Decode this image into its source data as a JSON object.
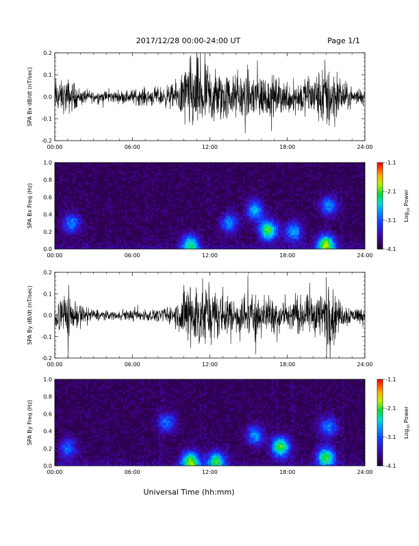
{
  "header": {
    "title": "2017/12/28  00:00-24:00 UT",
    "page_label": "Page 1/1"
  },
  "colorbar": {
    "label_main": "Log",
    "label_sub": "10",
    "label_end": " Power",
    "ticks": [
      "-1.1",
      "-2.1",
      "-3.1",
      "-4.1"
    ]
  },
  "chart_data": [
    {
      "type": "line",
      "title": "",
      "ylabel": "SPA Bx dB/dt (nT/sec)",
      "xlabel": "",
      "xlim": [
        0,
        24
      ],
      "ylim": [
        -0.2,
        0.2
      ],
      "yticks": [
        "0.2",
        "0.1",
        "0.0",
        "-0.1",
        "-0.2"
      ],
      "xticks": [
        "00:00",
        "06:00",
        "12:00",
        "18:00",
        "24:00"
      ],
      "grid": false,
      "series": [
        {
          "amplitude_envelope": {
            "x": [
              0,
              0.5,
              1,
              1.3,
              2,
              3,
              4,
              5,
              6,
              7,
              8,
              9,
              9.5,
              10,
              10.5,
              11,
              11.5,
              12,
              13,
              14,
              15,
              15.5,
              16,
              17,
              18,
              19,
              20,
              20.5,
              21,
              21.3,
              22,
              23,
              24
            ],
            "y": [
              0.13,
              0.1,
              0.12,
              0.1,
              0.05,
              0.04,
              0.04,
              0.04,
              0.05,
              0.06,
              0.06,
              0.08,
              0.1,
              0.2,
              0.24,
              0.24,
              0.24,
              0.2,
              0.17,
              0.14,
              0.17,
              0.22,
              0.15,
              0.13,
              0.11,
              0.12,
              0.14,
              0.18,
              0.24,
              0.24,
              0.12,
              0.06,
              0.05
            ]
          }
        }
      ]
    },
    {
      "type": "heatmap",
      "title": "",
      "ylabel": "SPA Bx Freq (Hz)",
      "xlabel": "",
      "xlim": [
        0,
        24
      ],
      "ylim": [
        0,
        1.0
      ],
      "yticks": [
        "1.0",
        "0.8",
        "0.6",
        "0.4",
        "0.2",
        "0.0"
      ],
      "xticks": [
        "00:00",
        "06:00",
        "12:00",
        "18:00",
        "24:00"
      ],
      "zlim": [
        -4.1,
        -1.1
      ],
      "hotspots": [
        {
          "t": 1.3,
          "f": 0.3,
          "p": -2.9
        },
        {
          "t": 10.5,
          "f": 0.05,
          "p": -2.4
        },
        {
          "t": 13.5,
          "f": 0.3,
          "p": -2.9
        },
        {
          "t": 15.5,
          "f": 0.45,
          "p": -2.7
        },
        {
          "t": 16.5,
          "f": 0.22,
          "p": -2.1
        },
        {
          "t": 18.5,
          "f": 0.2,
          "p": -2.8
        },
        {
          "t": 21.0,
          "f": 0.05,
          "p": -1.9
        },
        {
          "t": 21.2,
          "f": 0.5,
          "p": -2.9
        }
      ]
    },
    {
      "type": "line",
      "title": "",
      "ylabel": "SPA By dB/dt (nT/sec)",
      "xlabel": "",
      "xlim": [
        0,
        24
      ],
      "ylim": [
        -0.2,
        0.2
      ],
      "yticks": [
        "0.2",
        "0.1",
        "0.0",
        "-0.1",
        "-0.2"
      ],
      "xticks": [
        "00:00",
        "06:00",
        "12:00",
        "18:00",
        "24:00"
      ],
      "grid": false,
      "series": [
        {
          "amplitude_envelope": {
            "x": [
              0,
              0.5,
              1,
              1.3,
              2,
              3,
              4,
              5,
              6,
              7,
              8,
              9,
              9.5,
              10,
              10.5,
              11,
              11.5,
              12,
              13,
              14,
              15,
              15.5,
              16,
              17,
              18,
              19,
              20,
              20.5,
              21,
              21.3,
              22,
              23,
              24
            ],
            "y": [
              0.1,
              0.12,
              0.17,
              0.12,
              0.07,
              0.04,
              0.03,
              0.03,
              0.04,
              0.04,
              0.04,
              0.06,
              0.09,
              0.2,
              0.24,
              0.24,
              0.22,
              0.18,
              0.15,
              0.12,
              0.15,
              0.16,
              0.12,
              0.12,
              0.11,
              0.12,
              0.14,
              0.16,
              0.24,
              0.24,
              0.1,
              0.06,
              0.05
            ]
          }
        }
      ]
    },
    {
      "type": "heatmap",
      "title": "",
      "ylabel": "SPA By Freq (Hz)",
      "xlabel": "Universal Time (hh:mm)",
      "xlim": [
        0,
        24
      ],
      "ylim": [
        0,
        1.0
      ],
      "yticks": [
        "1.0",
        "0.8",
        "0.6",
        "0.4",
        "0.2",
        "0.0"
      ],
      "xticks": [
        "00:00",
        "06:00",
        "12:00",
        "18:00",
        "24:00"
      ],
      "zlim": [
        -4.1,
        -1.1
      ],
      "hotspots": [
        {
          "t": 1.0,
          "f": 0.2,
          "p": -3.0
        },
        {
          "t": 8.7,
          "f": 0.5,
          "p": -3.0
        },
        {
          "t": 10.5,
          "f": 0.05,
          "p": -2.0
        },
        {
          "t": 12.5,
          "f": 0.05,
          "p": -2.3
        },
        {
          "t": 15.5,
          "f": 0.35,
          "p": -2.8
        },
        {
          "t": 17.5,
          "f": 0.22,
          "p": -2.1
        },
        {
          "t": 21.0,
          "f": 0.1,
          "p": -2.2
        },
        {
          "t": 21.2,
          "f": 0.45,
          "p": -2.9
        }
      ]
    }
  ]
}
